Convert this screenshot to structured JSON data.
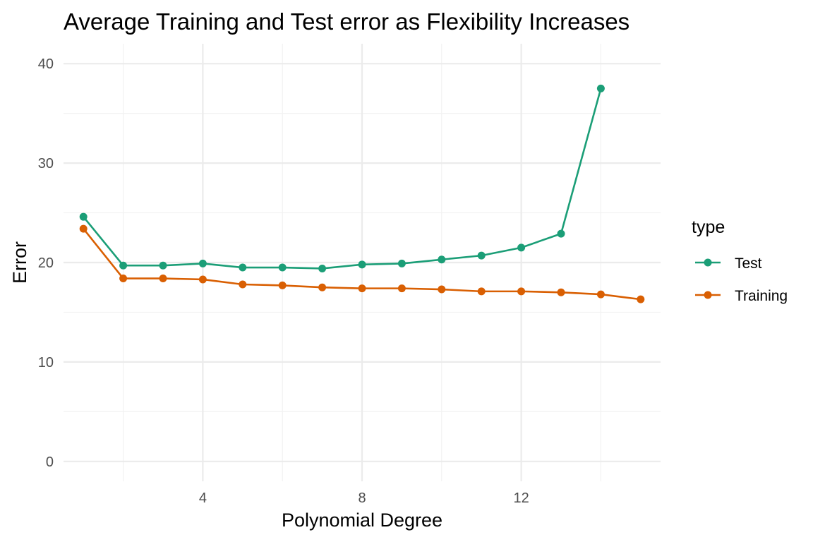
{
  "chart_data": {
    "type": "line",
    "title": "Average Training and Test error as Flexibility Increases",
    "xlabel": "Polynomial Degree",
    "ylabel": "Error",
    "xlim": [
      0.5,
      15.5
    ],
    "ylim": [
      -2,
      42
    ],
    "x_ticks": [
      4,
      8,
      12
    ],
    "y_ticks": [
      0,
      10,
      20,
      30,
      40
    ],
    "grid": true,
    "legend": {
      "title": "type",
      "position": "right"
    },
    "x": [
      1,
      2,
      3,
      4,
      5,
      6,
      7,
      8,
      9,
      10,
      11,
      12,
      13,
      14,
      15
    ],
    "series": [
      {
        "name": "Test",
        "color": "#1b9e77",
        "values": [
          24.6,
          19.7,
          19.7,
          19.9,
          19.5,
          19.5,
          19.4,
          19.8,
          19.9,
          20.3,
          20.7,
          21.5,
          22.9,
          37.5,
          null
        ]
      },
      {
        "name": "Training",
        "color": "#d95f02",
        "values": [
          23.4,
          18.4,
          18.4,
          18.3,
          17.8,
          17.7,
          17.5,
          17.4,
          17.4,
          17.3,
          17.1,
          17.1,
          17.0,
          16.8,
          16.3
        ]
      }
    ]
  }
}
